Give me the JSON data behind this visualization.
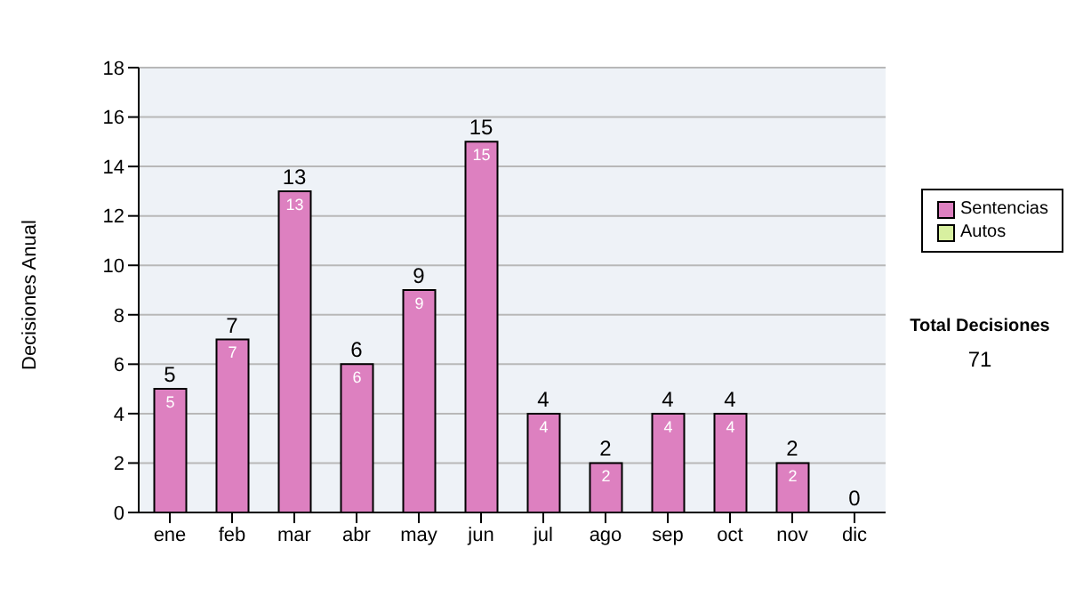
{
  "chart_data": {
    "type": "bar",
    "ylabel": "Decisiones Anual",
    "categories": [
      "ene",
      "feb",
      "mar",
      "abr",
      "may",
      "jun",
      "jul",
      "ago",
      "sep",
      "oct",
      "nov",
      "dic"
    ],
    "series": [
      {
        "name": "Sentencias",
        "color": "#dd80c0",
        "values": [
          5,
          7,
          13,
          6,
          9,
          15,
          4,
          2,
          4,
          4,
          2,
          0
        ],
        "value_labels": [
          "5",
          "7",
          "13",
          "6",
          "9",
          "15",
          "4",
          "2",
          "4",
          "4",
          "2",
          null
        ]
      },
      {
        "name": "Autos",
        "color": "#d8f0a0",
        "values": [
          0,
          0,
          0,
          0,
          0,
          0,
          0,
          0,
          0,
          0,
          0,
          0
        ]
      }
    ],
    "stacked": true,
    "totals": [
      "5",
      "7",
      "13",
      "6",
      "9",
      "15",
      "4",
      "2",
      "4",
      "4",
      "2",
      "0"
    ],
    "ylim": [
      0,
      18
    ],
    "yticks": [
      0,
      2,
      4,
      6,
      8,
      10,
      12,
      14,
      16,
      18
    ],
    "grid": "y",
    "legend": "right",
    "annotations": [
      "Total Decisiones",
      "71"
    ]
  }
}
